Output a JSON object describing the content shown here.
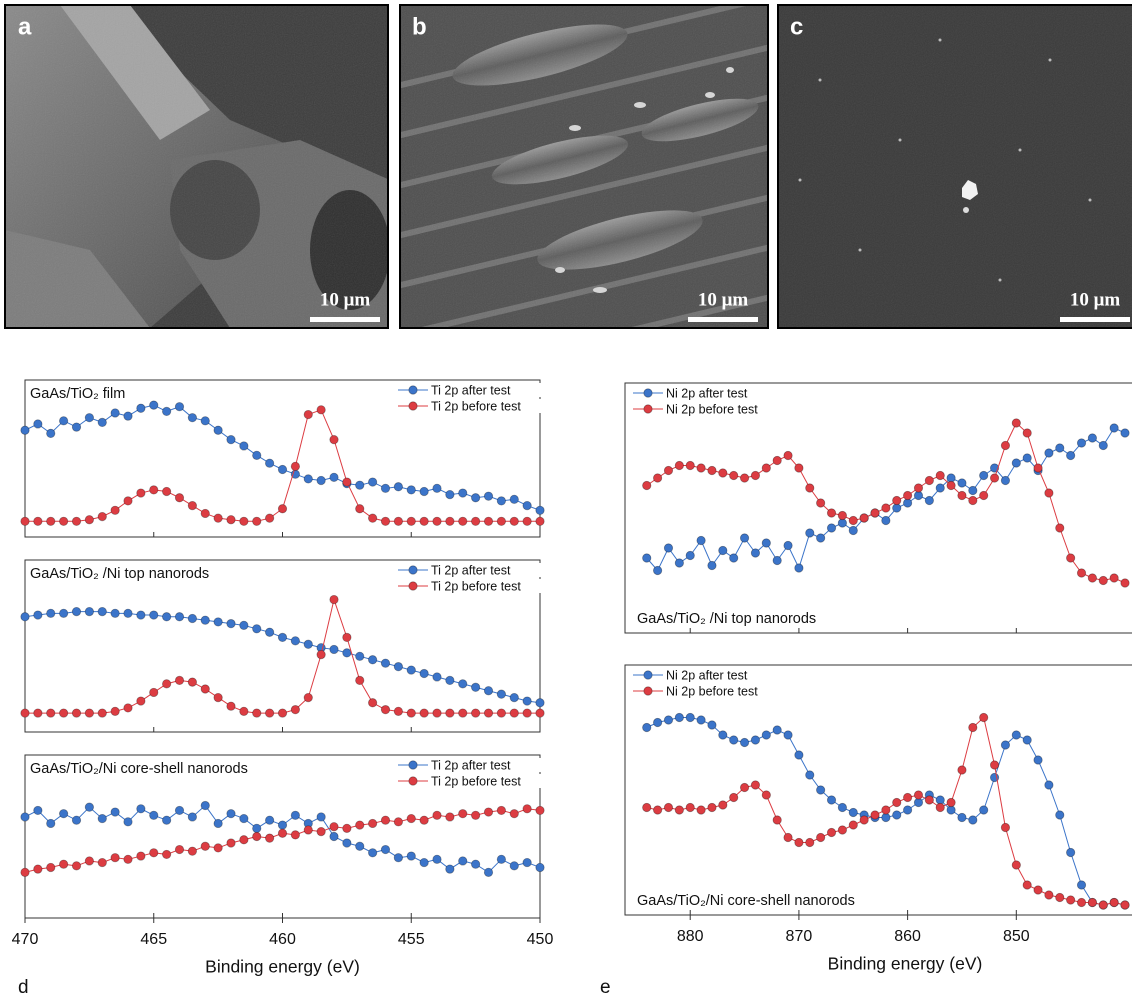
{
  "images": [
    {
      "label": "a",
      "scale_bar": "10 μm"
    },
    {
      "label": "b",
      "scale_bar": "10 μm"
    },
    {
      "label": "c",
      "scale_bar": "10 μm"
    }
  ],
  "chart_data": [
    {
      "type": "line",
      "panel_label": "d",
      "xlabel": "Binding energy (eV)",
      "xlim": [
        470,
        450
      ],
      "xticks": [
        470,
        465,
        460,
        455,
        450
      ],
      "ylim": [
        0,
        1
      ],
      "legend": "upper right",
      "x": [
        470,
        469.5,
        469,
        468.5,
        468,
        467.5,
        467,
        466.5,
        466,
        465.5,
        465,
        464.5,
        464,
        463.5,
        463,
        462.5,
        462,
        461.5,
        461,
        460.5,
        460,
        459.5,
        459,
        458.5,
        458,
        457.5,
        457,
        456.5,
        456,
        455.5,
        455,
        454.5,
        454,
        453.5,
        453,
        452.5,
        452,
        451.5,
        451,
        450.5,
        450
      ],
      "subplots": [
        {
          "title": "GaAs/TiO₂ film",
          "series": [
            {
              "name": "Ti 2p after test",
              "color": "#3b74c9",
              "values": [
                0.68,
                0.72,
                0.66,
                0.74,
                0.7,
                0.76,
                0.73,
                0.79,
                0.77,
                0.82,
                0.84,
                0.8,
                0.83,
                0.76,
                0.74,
                0.68,
                0.62,
                0.58,
                0.52,
                0.47,
                0.43,
                0.4,
                0.37,
                0.36,
                0.38,
                0.34,
                0.33,
                0.35,
                0.31,
                0.32,
                0.3,
                0.29,
                0.31,
                0.27,
                0.28,
                0.25,
                0.26,
                0.23,
                0.24,
                0.2,
                0.17
              ]
            },
            {
              "name": "Ti 2p before test",
              "color": "#dc3c42",
              "values": [
                0.1,
                0.1,
                0.1,
                0.1,
                0.1,
                0.11,
                0.13,
                0.17,
                0.23,
                0.28,
                0.3,
                0.29,
                0.25,
                0.2,
                0.15,
                0.12,
                0.11,
                0.1,
                0.1,
                0.12,
                0.18,
                0.45,
                0.78,
                0.81,
                0.62,
                0.35,
                0.18,
                0.12,
                0.1,
                0.1,
                0.1,
                0.1,
                0.1,
                0.1,
                0.1,
                0.1,
                0.1,
                0.1,
                0.1,
                0.1,
                0.1
              ]
            }
          ]
        },
        {
          "title": "GaAs/TiO₂ /Ni top nanorods",
          "series": [
            {
              "name": "Ti 2p after test",
              "color": "#3b74c9",
              "values": [
                0.67,
                0.68,
                0.69,
                0.69,
                0.7,
                0.7,
                0.7,
                0.69,
                0.69,
                0.68,
                0.68,
                0.67,
                0.67,
                0.66,
                0.65,
                0.64,
                0.63,
                0.62,
                0.6,
                0.58,
                0.55,
                0.53,
                0.51,
                0.49,
                0.48,
                0.46,
                0.44,
                0.42,
                0.4,
                0.38,
                0.36,
                0.34,
                0.32,
                0.3,
                0.28,
                0.26,
                0.24,
                0.22,
                0.2,
                0.18,
                0.17
              ]
            },
            {
              "name": "Ti 2p before test",
              "color": "#dc3c42",
              "values": [
                0.11,
                0.11,
                0.11,
                0.11,
                0.11,
                0.11,
                0.11,
                0.12,
                0.14,
                0.18,
                0.23,
                0.28,
                0.3,
                0.29,
                0.25,
                0.2,
                0.15,
                0.12,
                0.11,
                0.11,
                0.11,
                0.13,
                0.2,
                0.45,
                0.77,
                0.55,
                0.3,
                0.17,
                0.13,
                0.12,
                0.11,
                0.11,
                0.11,
                0.11,
                0.11,
                0.11,
                0.11,
                0.11,
                0.11,
                0.11,
                0.11
              ]
            }
          ]
        },
        {
          "title": "GaAs/TiO₂/Ni core-shell nanorods",
          "series": [
            {
              "name": "Ti 2p after test",
              "color": "#3b74c9",
              "values": [
                0.62,
                0.66,
                0.58,
                0.64,
                0.6,
                0.68,
                0.61,
                0.65,
                0.59,
                0.67,
                0.63,
                0.6,
                0.66,
                0.62,
                0.69,
                0.58,
                0.64,
                0.61,
                0.55,
                0.6,
                0.57,
                0.63,
                0.58,
                0.62,
                0.5,
                0.46,
                0.44,
                0.4,
                0.42,
                0.37,
                0.38,
                0.34,
                0.36,
                0.3,
                0.35,
                0.33,
                0.28,
                0.36,
                0.32,
                0.34,
                0.31
              ]
            },
            {
              "name": "Ti 2p before test",
              "color": "#dc3c42",
              "values": [
                0.28,
                0.3,
                0.31,
                0.33,
                0.32,
                0.35,
                0.34,
                0.37,
                0.36,
                0.38,
                0.4,
                0.39,
                0.42,
                0.41,
                0.44,
                0.43,
                0.46,
                0.48,
                0.5,
                0.49,
                0.52,
                0.51,
                0.54,
                0.53,
                0.56,
                0.55,
                0.57,
                0.58,
                0.6,
                0.59,
                0.61,
                0.6,
                0.63,
                0.62,
                0.64,
                0.63,
                0.65,
                0.66,
                0.64,
                0.67,
                0.66
              ]
            }
          ]
        }
      ]
    },
    {
      "type": "line",
      "panel_label": "e",
      "xlabel": "Binding energy (eV)",
      "xlim": [
        886,
        840
      ],
      "xticks": [
        880,
        870,
        860,
        850
      ],
      "ylim": [
        0,
        1
      ],
      "legend": "upper left",
      "x": [
        884,
        883,
        882,
        881,
        880,
        879,
        878,
        877,
        876,
        875,
        874,
        873,
        872,
        871,
        870,
        869,
        868,
        867,
        866,
        865,
        864,
        863,
        862,
        861,
        860,
        859,
        858,
        857,
        856,
        855,
        854,
        853,
        852,
        851,
        850,
        849,
        848,
        847,
        846,
        845,
        844,
        843,
        842,
        841,
        840
      ],
      "subplots": [
        {
          "title": "GaAs/TiO₂ /Ni top nanorods",
          "series": [
            {
              "name": "Ni 2p after test",
              "color": "#3b74c9",
              "values": [
                0.3,
                0.25,
                0.34,
                0.28,
                0.31,
                0.37,
                0.27,
                0.33,
                0.3,
                0.38,
                0.32,
                0.36,
                0.29,
                0.35,
                0.26,
                0.4,
                0.38,
                0.42,
                0.44,
                0.41,
                0.46,
                0.48,
                0.45,
                0.5,
                0.52,
                0.55,
                0.53,
                0.58,
                0.62,
                0.6,
                0.57,
                0.63,
                0.66,
                0.61,
                0.68,
                0.7,
                0.65,
                0.72,
                0.74,
                0.71,
                0.76,
                0.78,
                0.75,
                0.82,
                0.8
              ]
            },
            {
              "name": "Ni 2p before test",
              "color": "#dc3c42",
              "values": [
                0.59,
                0.62,
                0.65,
                0.67,
                0.67,
                0.66,
                0.65,
                0.64,
                0.63,
                0.62,
                0.63,
                0.66,
                0.69,
                0.71,
                0.66,
                0.58,
                0.52,
                0.48,
                0.47,
                0.45,
                0.46,
                0.48,
                0.5,
                0.53,
                0.55,
                0.58,
                0.61,
                0.63,
                0.59,
                0.55,
                0.53,
                0.55,
                0.62,
                0.75,
                0.84,
                0.8,
                0.66,
                0.56,
                0.42,
                0.3,
                0.24,
                0.22,
                0.21,
                0.22,
                0.2
              ]
            }
          ]
        },
        {
          "title": "GaAs/TiO₂/Ni core-shell nanorods",
          "series": [
            {
              "name": "Ni 2p after test",
              "color": "#3b74c9",
              "values": [
                0.75,
                0.77,
                0.78,
                0.79,
                0.79,
                0.78,
                0.76,
                0.72,
                0.7,
                0.69,
                0.7,
                0.72,
                0.74,
                0.72,
                0.64,
                0.56,
                0.5,
                0.46,
                0.43,
                0.41,
                0.4,
                0.39,
                0.39,
                0.4,
                0.42,
                0.45,
                0.48,
                0.46,
                0.42,
                0.39,
                0.38,
                0.42,
                0.55,
                0.68,
                0.72,
                0.7,
                0.62,
                0.52,
                0.4,
                0.25,
                0.12,
                0.05,
                0.04,
                0.05,
                0.04
              ]
            },
            {
              "name": "Ni 2p before test",
              "color": "#dc3c42",
              "values": [
                0.43,
                0.42,
                0.43,
                0.42,
                0.43,
                0.42,
                0.43,
                0.44,
                0.47,
                0.51,
                0.52,
                0.48,
                0.38,
                0.31,
                0.29,
                0.29,
                0.31,
                0.33,
                0.34,
                0.36,
                0.38,
                0.4,
                0.42,
                0.45,
                0.47,
                0.48,
                0.46,
                0.43,
                0.45,
                0.58,
                0.75,
                0.79,
                0.6,
                0.35,
                0.2,
                0.12,
                0.1,
                0.08,
                0.07,
                0.06,
                0.05,
                0.05,
                0.04,
                0.05,
                0.04
              ]
            }
          ]
        }
      ]
    }
  ]
}
